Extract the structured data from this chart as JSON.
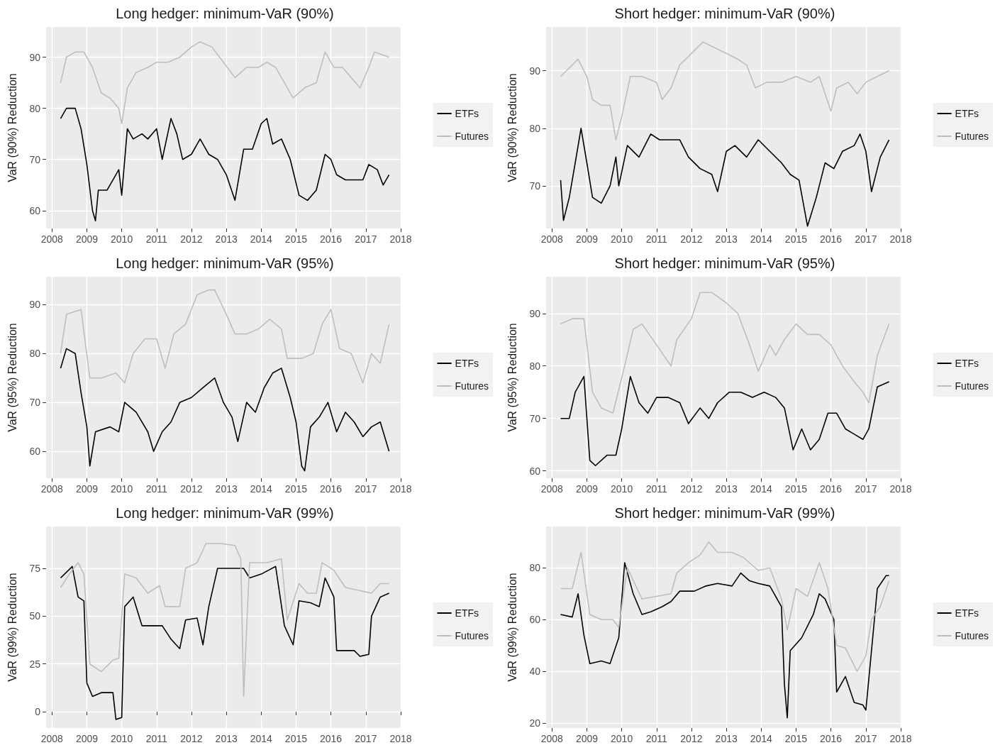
{
  "chart_data": [
    {
      "type": "line",
      "title": "Long hedger: minimum-VaR (90%)",
      "ylabel": "VaR (90%) Reduction",
      "xlim": [
        "2007-11",
        "2018-01"
      ],
      "xticks": [
        "2008",
        "2009",
        "2010",
        "2011",
        "2012",
        "2013",
        "2014",
        "2015",
        "2016",
        "2017",
        "2018"
      ],
      "ylim": [
        56.5,
        95.9
      ],
      "yticks": [
        60,
        70,
        80,
        90
      ],
      "grid": true,
      "legend": "right",
      "marker": "none",
      "line_style": "solid",
      "series": [
        {
          "name": "ETFs",
          "color": "#000000",
          "x": [
            "2008-04",
            "2008-06",
            "2008-09",
            "2008-11",
            "2009-01",
            "2009-03",
            "2009-04",
            "2009-05",
            "2009-08",
            "2009-10",
            "2009-12",
            "2010-01",
            "2010-03",
            "2010-05",
            "2010-08",
            "2010-10",
            "2011-01",
            "2011-03",
            "2011-06",
            "2011-08",
            "2011-10",
            "2012-01",
            "2012-04",
            "2012-07",
            "2012-10",
            "2013-01",
            "2013-04",
            "2013-07",
            "2013-10",
            "2014-01",
            "2014-03",
            "2014-05",
            "2014-08",
            "2014-11",
            "2015-02",
            "2015-05",
            "2015-08",
            "2015-11",
            "2016-01",
            "2016-03",
            "2016-06",
            "2016-09",
            "2016-12",
            "2017-02",
            "2017-05",
            "2017-07",
            "2017-09"
          ],
          "values": [
            78,
            80,
            80,
            76,
            69,
            60,
            58,
            64,
            64,
            66,
            68,
            63,
            76,
            74,
            75,
            74,
            76,
            70,
            78,
            75,
            70,
            71,
            74,
            71,
            70,
            67,
            62,
            72,
            72,
            77,
            78,
            73,
            74,
            70,
            63,
            62,
            64,
            71,
            70,
            67,
            66,
            66,
            66,
            69,
            68,
            65,
            67
          ]
        },
        {
          "name": "Futures",
          "color": "#bebebe",
          "x": [
            "2008-04",
            "2008-06",
            "2008-09",
            "2008-12",
            "2009-03",
            "2009-06",
            "2009-09",
            "2009-12",
            "2010-01",
            "2010-03",
            "2010-06",
            "2010-10",
            "2011-01",
            "2011-05",
            "2011-09",
            "2012-01",
            "2012-04",
            "2012-08",
            "2012-12",
            "2013-04",
            "2013-08",
            "2013-12",
            "2014-03",
            "2014-06",
            "2014-09",
            "2014-12",
            "2015-04",
            "2015-08",
            "2015-11",
            "2016-02",
            "2016-05",
            "2016-08",
            "2016-11",
            "2017-02",
            "2017-04",
            "2017-09"
          ],
          "values": [
            85,
            90,
            91,
            91,
            88,
            83,
            82,
            80,
            77,
            84,
            87,
            88,
            89,
            89,
            90,
            92,
            93,
            92,
            89,
            86,
            88,
            88,
            89,
            88,
            85,
            82,
            84,
            85,
            91,
            88,
            88,
            86,
            84,
            88,
            91,
            90
          ]
        }
      ]
    },
    {
      "type": "line",
      "title": "Short hedger: minimum-VaR (90%)",
      "ylabel": "VaR (90%) Reduction",
      "xlim": [
        "2007-11",
        "2018-01"
      ],
      "xticks": [
        "2008",
        "2009",
        "2010",
        "2011",
        "2012",
        "2013",
        "2014",
        "2015",
        "2016",
        "2017",
        "2018"
      ],
      "ylim": [
        62.6,
        97.6
      ],
      "yticks": [
        70,
        80,
        90
      ],
      "grid": true,
      "legend": "right",
      "marker": "none",
      "line_style": "solid",
      "series": [
        {
          "name": "ETFs",
          "color": "#000000",
          "x": [
            "2008-04",
            "2008-05",
            "2008-07",
            "2008-09",
            "2008-11",
            "2009-01",
            "2009-03",
            "2009-06",
            "2009-09",
            "2009-11",
            "2009-12",
            "2010-03",
            "2010-07",
            "2010-11",
            "2011-02",
            "2011-06",
            "2011-09",
            "2011-12",
            "2012-04",
            "2012-08",
            "2012-10",
            "2013-01",
            "2013-04",
            "2013-08",
            "2013-12",
            "2014-04",
            "2014-08",
            "2014-11",
            "2015-02",
            "2015-05",
            "2015-08",
            "2015-11",
            "2016-02",
            "2016-05",
            "2016-09",
            "2016-11",
            "2017-01",
            "2017-03",
            "2017-06",
            "2017-09"
          ],
          "values": [
            71,
            64,
            68,
            74,
            80,
            74,
            68,
            67,
            70,
            75,
            70,
            77,
            75,
            79,
            78,
            78,
            78,
            75,
            73,
            72,
            69,
            76,
            77,
            75,
            78,
            76,
            74,
            72,
            71,
            63,
            68,
            74,
            73,
            76,
            77,
            79,
            76,
            69,
            75,
            78
          ]
        },
        {
          "name": "Futures",
          "color": "#bebebe",
          "x": [
            "2008-04",
            "2008-08",
            "2008-10",
            "2009-01",
            "2009-03",
            "2009-06",
            "2009-09",
            "2009-11",
            "2010-01",
            "2010-04",
            "2010-08",
            "2011-01",
            "2011-03",
            "2011-06",
            "2011-09",
            "2012-01",
            "2012-05",
            "2012-09",
            "2013-01",
            "2013-05",
            "2013-08",
            "2013-11",
            "2014-03",
            "2014-08",
            "2015-01",
            "2015-06",
            "2015-09",
            "2016-01",
            "2016-03",
            "2016-07",
            "2016-10",
            "2017-01",
            "2017-05",
            "2017-09"
          ],
          "values": [
            89,
            91,
            92,
            89,
            85,
            84,
            84,
            78,
            82,
            89,
            89,
            88,
            85,
            87,
            91,
            93,
            95,
            94,
            93,
            92,
            91,
            87,
            88,
            88,
            89,
            88,
            89,
            83,
            87,
            88,
            86,
            88,
            89,
            90
          ]
        }
      ]
    },
    {
      "type": "line",
      "title": "Long hedger: minimum-VaR (95%)",
      "ylabel": "VaR (95%) Reduction",
      "xlim": [
        "2007-11",
        "2018-01"
      ],
      "xticks": [
        "2008",
        "2009",
        "2010",
        "2011",
        "2012",
        "2013",
        "2014",
        "2015",
        "2016",
        "2017",
        "2018"
      ],
      "ylim": [
        54.5,
        95.7
      ],
      "yticks": [
        60,
        70,
        80,
        90
      ],
      "grid": true,
      "legend": "right",
      "marker": "none",
      "line_style": "solid",
      "series": [
        {
          "name": "ETFs",
          "color": "#000000",
          "x": [
            "2008-04",
            "2008-06",
            "2008-09",
            "2008-11",
            "2009-01",
            "2009-02",
            "2009-04",
            "2009-09",
            "2009-12",
            "2010-02",
            "2010-06",
            "2010-10",
            "2010-12",
            "2011-03",
            "2011-06",
            "2011-09",
            "2012-01",
            "2012-05",
            "2012-09",
            "2012-12",
            "2013-03",
            "2013-05",
            "2013-08",
            "2013-11",
            "2014-02",
            "2014-05",
            "2014-08",
            "2014-11",
            "2015-01",
            "2015-03",
            "2015-04",
            "2015-06",
            "2015-09",
            "2015-12",
            "2016-03",
            "2016-06",
            "2016-09",
            "2016-12",
            "2017-03",
            "2017-06",
            "2017-09"
          ],
          "values": [
            77,
            81,
            80,
            72,
            65,
            57,
            64,
            65,
            64,
            70,
            68,
            64,
            60,
            64,
            66,
            70,
            71,
            73,
            75,
            70,
            67,
            62,
            70,
            68,
            73,
            76,
            77,
            71,
            66,
            57,
            56,
            65,
            67,
            70,
            64,
            68,
            66,
            63,
            65,
            66,
            60
          ]
        },
        {
          "name": "Futures",
          "color": "#bebebe",
          "x": [
            "2008-04",
            "2008-06",
            "2008-11",
            "2009-02",
            "2009-06",
            "2009-11",
            "2010-02",
            "2010-05",
            "2010-09",
            "2011-01",
            "2011-04",
            "2011-07",
            "2011-11",
            "2012-03",
            "2012-07",
            "2012-09",
            "2013-01",
            "2013-04",
            "2013-08",
            "2013-12",
            "2014-04",
            "2014-08",
            "2014-10",
            "2015-03",
            "2015-07",
            "2015-10",
            "2016-01",
            "2016-04",
            "2016-08",
            "2016-12",
            "2017-03",
            "2017-06",
            "2017-09"
          ],
          "values": [
            80,
            88,
            89,
            75,
            75,
            76,
            74,
            80,
            83,
            83,
            77,
            84,
            86,
            92,
            93,
            93,
            88,
            84,
            84,
            85,
            87,
            85,
            79,
            79,
            80,
            86,
            89,
            81,
            80,
            74,
            80,
            78,
            86
          ]
        }
      ]
    },
    {
      "type": "line",
      "title": "Short hedger: minimum-VaR (95%)",
      "ylabel": "VaR (95%) Reduction",
      "xlim": [
        "2007-11",
        "2018-01"
      ],
      "xticks": [
        "2008",
        "2009",
        "2010",
        "2011",
        "2012",
        "2013",
        "2014",
        "2015",
        "2016",
        "2017",
        "2018"
      ],
      "ylim": [
        58.6,
        97
      ],
      "yticks": [
        60,
        70,
        80,
        90
      ],
      "grid": true,
      "legend": "right",
      "marker": "none",
      "line_style": "solid",
      "series": [
        {
          "name": "ETFs",
          "color": "#000000",
          "x": [
            "2008-04",
            "2008-07",
            "2008-09",
            "2008-12",
            "2009-02",
            "2009-04",
            "2009-08",
            "2009-11",
            "2010-01",
            "2010-04",
            "2010-07",
            "2010-10",
            "2011-01",
            "2011-05",
            "2011-09",
            "2011-12",
            "2012-04",
            "2012-07",
            "2012-10",
            "2013-02",
            "2013-06",
            "2013-10",
            "2014-02",
            "2014-06",
            "2014-09",
            "2014-12",
            "2015-03",
            "2015-06",
            "2015-09",
            "2015-12",
            "2016-03",
            "2016-06",
            "2016-09",
            "2016-12",
            "2017-02",
            "2017-05",
            "2017-09"
          ],
          "values": [
            70,
            70,
            75,
            78,
            62,
            61,
            63,
            63,
            68,
            78,
            73,
            71,
            74,
            74,
            73,
            69,
            72,
            70,
            73,
            75,
            75,
            74,
            75,
            74,
            72,
            64,
            68,
            64,
            66,
            71,
            71,
            68,
            67,
            66,
            68,
            76,
            77
          ]
        },
        {
          "name": "Futures",
          "color": "#bebebe",
          "x": [
            "2008-04",
            "2008-08",
            "2008-12",
            "2009-03",
            "2009-06",
            "2009-10",
            "2010-02",
            "2010-05",
            "2010-08",
            "2011-01",
            "2011-06",
            "2011-08",
            "2012-01",
            "2012-04",
            "2012-08",
            "2013-01",
            "2013-05",
            "2013-09",
            "2013-12",
            "2014-04",
            "2014-06",
            "2014-09",
            "2015-01",
            "2015-05",
            "2015-09",
            "2016-01",
            "2016-05",
            "2016-09",
            "2016-12",
            "2017-02",
            "2017-05",
            "2017-09"
          ],
          "values": [
            88,
            89,
            89,
            75,
            72,
            71,
            80,
            87,
            88,
            84,
            80,
            85,
            89,
            94,
            94,
            92,
            90,
            84,
            79,
            84,
            82,
            85,
            88,
            86,
            86,
            84,
            80,
            77,
            75,
            73,
            82,
            88
          ]
        }
      ]
    },
    {
      "type": "line",
      "title": "Long hedger: minimum-VaR (99%)",
      "ylabel": "VaR (99%) Reduction",
      "xlim": [
        "2007-11",
        "2018-01"
      ],
      "xticks": [
        "2008",
        "2009",
        "2010",
        "2011",
        "2012",
        "2013",
        "2014",
        "2015",
        "2016",
        "2017",
        "2018"
      ],
      "ylim": [
        -8.5,
        96.9
      ],
      "yticks": [
        0,
        25,
        50,
        75
      ],
      "grid": true,
      "legend": "right",
      "marker": "none",
      "line_style": "solid",
      "series": [
        {
          "name": "ETFs",
          "color": "#000000",
          "x": [
            "2008-04",
            "2008-08",
            "2008-10",
            "2008-12",
            "2009-01",
            "2009-03",
            "2009-06",
            "2009-10",
            "2009-11",
            "2010-01",
            "2010-02",
            "2010-05",
            "2010-08",
            "2010-12",
            "2011-03",
            "2011-06",
            "2011-09",
            "2011-11",
            "2012-03",
            "2012-05",
            "2012-07",
            "2012-10",
            "2013-03",
            "2013-07",
            "2013-09",
            "2014-01",
            "2014-06",
            "2014-09",
            "2014-12",
            "2015-02",
            "2015-06",
            "2015-09",
            "2015-11",
            "2016-02",
            "2016-03",
            "2016-09",
            "2016-11",
            "2017-02",
            "2017-03",
            "2017-06",
            "2017-09"
          ],
          "values": [
            70,
            76,
            60,
            58,
            15,
            8,
            10,
            10,
            -4,
            -3,
            55,
            60,
            45,
            45,
            45,
            38,
            33,
            48,
            49,
            35,
            55,
            75,
            75,
            75,
            70,
            72,
            76,
            45,
            35,
            58,
            57,
            55,
            70,
            60,
            32,
            32,
            29,
            30,
            50,
            60,
            62
          ]
        },
        {
          "name": "Futures",
          "color": "#bebebe",
          "x": [
            "2008-04",
            "2008-07",
            "2008-10",
            "2008-12",
            "2009-02",
            "2009-06",
            "2009-10",
            "2009-12",
            "2010-02",
            "2010-06",
            "2010-10",
            "2011-02",
            "2011-04",
            "2011-09",
            "2011-11",
            "2012-03",
            "2012-06",
            "2012-11",
            "2013-04",
            "2013-06",
            "2013-07",
            "2013-09",
            "2014-03",
            "2014-08",
            "2014-10",
            "2015-02",
            "2015-05",
            "2015-08",
            "2015-10",
            "2016-02",
            "2016-06",
            "2016-12",
            "2017-03",
            "2017-06",
            "2017-09"
          ],
          "values": [
            65,
            72,
            78,
            72,
            25,
            21,
            27,
            28,
            72,
            70,
            62,
            66,
            55,
            55,
            75,
            78,
            88,
            88,
            87,
            80,
            8,
            78,
            78,
            80,
            48,
            67,
            62,
            62,
            78,
            74,
            65,
            63,
            62,
            67,
            67
          ]
        }
      ]
    },
    {
      "type": "line",
      "title": "Short hedger: minimum-VaR (99%)",
      "ylabel": "VaR (99%) Reduction",
      "xlim": [
        "2007-11",
        "2018-01"
      ],
      "xticks": [
        "2008",
        "2009",
        "2010",
        "2011",
        "2012",
        "2013",
        "2014",
        "2015",
        "2016",
        "2017",
        "2018"
      ],
      "ylim": [
        18.1,
        96
      ],
      "yticks": [
        20,
        40,
        60,
        80
      ],
      "grid": true,
      "legend": "right",
      "marker": "none",
      "line_style": "solid",
      "series": [
        {
          "name": "ETFs",
          "color": "#000000",
          "x": [
            "2008-04",
            "2008-08",
            "2008-10",
            "2008-12",
            "2009-02",
            "2009-06",
            "2009-09",
            "2009-12",
            "2010-02",
            "2010-05",
            "2010-08",
            "2010-11",
            "2011-03",
            "2011-06",
            "2011-09",
            "2012-02",
            "2012-06",
            "2012-10",
            "2013-03",
            "2013-06",
            "2013-09",
            "2013-12",
            "2014-04",
            "2014-08",
            "2014-09",
            "2014-10",
            "2014-11",
            "2015-03",
            "2015-07",
            "2015-09",
            "2015-11",
            "2016-02",
            "2016-03",
            "2016-06",
            "2016-09",
            "2016-12",
            "2017-01",
            "2017-03",
            "2017-05",
            "2017-08",
            "2017-09"
          ],
          "values": [
            62,
            61,
            70,
            54,
            43,
            44,
            43,
            53,
            82,
            70,
            62,
            63,
            65,
            67,
            71,
            71,
            73,
            74,
            73,
            78,
            75,
            74,
            73,
            65,
            35,
            22,
            48,
            53,
            62,
            70,
            68,
            60,
            32,
            38,
            28,
            27,
            25,
            48,
            72,
            77,
            77
          ]
        },
        {
          "name": "Futures",
          "color": "#bebebe",
          "x": [
            "2008-04",
            "2008-08",
            "2008-11",
            "2009-02",
            "2009-06",
            "2009-10",
            "2009-12",
            "2010-03",
            "2010-08",
            "2011-01",
            "2011-06",
            "2011-08",
            "2011-12",
            "2012-04",
            "2012-07",
            "2012-10",
            "2013-03",
            "2013-07",
            "2013-12",
            "2014-04",
            "2014-08",
            "2014-10",
            "2015-01",
            "2015-05",
            "2015-09",
            "2015-12",
            "2016-03",
            "2016-06",
            "2016-10",
            "2017-01",
            "2017-03",
            "2017-06",
            "2017-09"
          ],
          "values": [
            72,
            72,
            86,
            62,
            60,
            60,
            57,
            80,
            68,
            69,
            70,
            78,
            82,
            85,
            90,
            86,
            86,
            84,
            79,
            80,
            68,
            56,
            72,
            69,
            82,
            72,
            50,
            49,
            40,
            46,
            60,
            65,
            75
          ]
        }
      ]
    }
  ]
}
